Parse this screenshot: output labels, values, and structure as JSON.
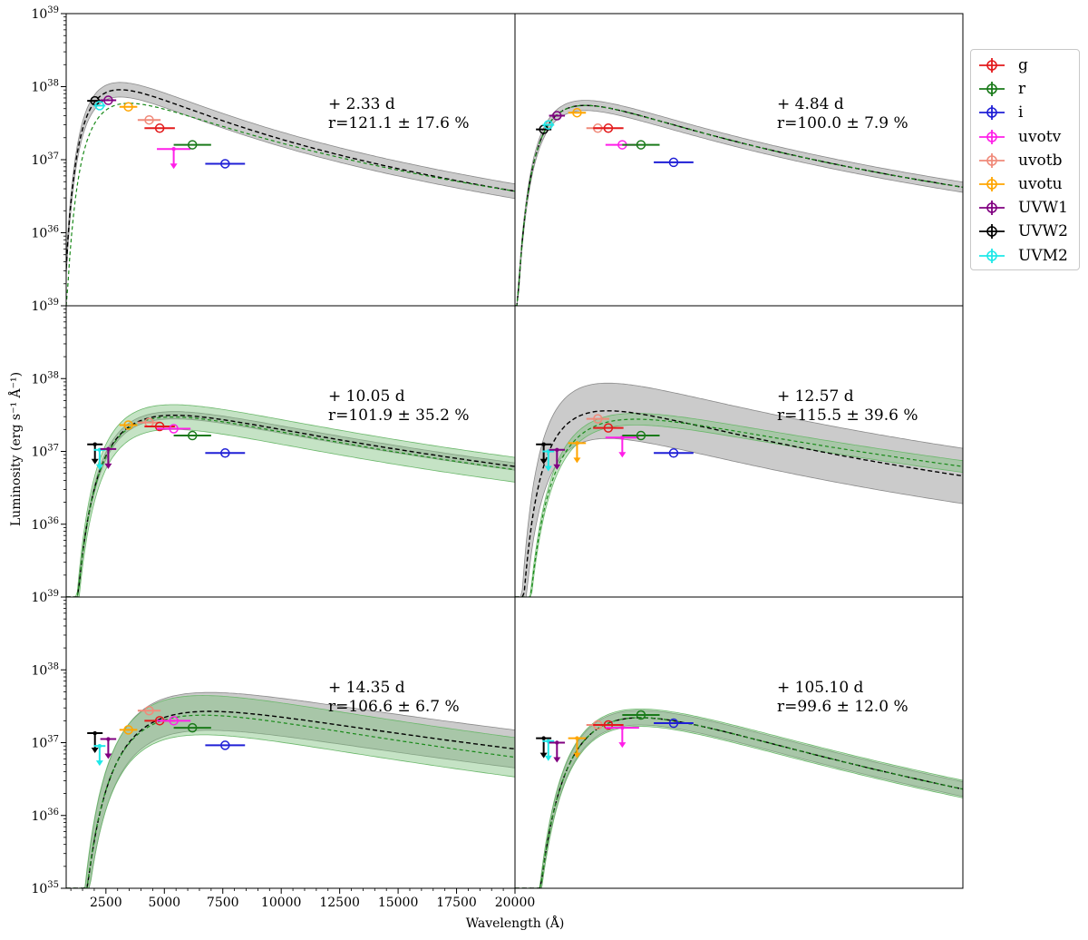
{
  "chart_data": {
    "type": "scatter",
    "title": "",
    "xlabel": "Wavelength (Å)",
    "ylabel": "Luminosity (erg s⁻¹ Å⁻¹)",
    "xlim": [
      800,
      20000
    ],
    "ylim": [
      1e+35,
      1e+39
    ],
    "yscale": "log",
    "xticks": [
      "2500",
      "5000",
      "7500",
      "10000",
      "12500",
      "15000",
      "17500",
      "20000"
    ],
    "ytick_labels": {
      "top": [
        "10^39",
        "10^38",
        "10^37",
        "10^36",
        "10^39"
      ],
      "middle": [
        "10^38",
        "10^37",
        "10^36",
        "10^39"
      ],
      "bottom": [
        "10^38",
        "10^37",
        "10^36",
        "10^35"
      ]
    },
    "legend_location": "upper right, outside axes",
    "legend": [
      {
        "name": "g",
        "color": "#e31a1c",
        "marker": "circle"
      },
      {
        "name": "r",
        "color": "#1a7a1a",
        "marker": "circle"
      },
      {
        "name": "i",
        "color": "#1f1fd6",
        "marker": "circle"
      },
      {
        "name": "uvotv",
        "color": "#ff1fe8",
        "marker": "circle"
      },
      {
        "name": "uvotb",
        "color": "#f08a7a",
        "marker": "circle"
      },
      {
        "name": "uvotu",
        "color": "#ffa500",
        "marker": "circle"
      },
      {
        "name": "UVW1",
        "color": "#800080",
        "marker": "circle"
      },
      {
        "name": "UVW2",
        "color": "#000000",
        "marker": "circle"
      },
      {
        "name": "UVM2",
        "color": "#1ee8e8",
        "marker": "circle"
      }
    ],
    "curve_colors": {
      "model": "#000000",
      "fit": "#1a8a1a",
      "model_band": "#a0a0a0",
      "fit_band": "#7fc27f"
    },
    "panels": [
      {
        "epoch_label": "+ 2.33 d",
        "ratio_label": "r=121.1 ± 17.6 %",
        "model_peak": {
          "wavelength": 2350,
          "luminosity": 7.8e+37,
          "tail_luminosity_20000": 3.7e+36
        },
        "model_band_width_dex": 0.1,
        "fit_peak": {
          "wavelength": 2550,
          "luminosity": 4.9e+37,
          "tail_luminosity_20000": 3.7e+36
        },
        "fit_band_width_dex": 0,
        "points": [
          {
            "band": "UVW2",
            "wavelength": 2030,
            "xerr": 330,
            "luminosity": 6.4e+37,
            "upper_limit": false
          },
          {
            "band": "UVM2",
            "wavelength": 2230,
            "xerr": 250,
            "luminosity": 5.5e+37,
            "upper_limit": false
          },
          {
            "band": "UVW1",
            "wavelength": 2600,
            "xerr": 340,
            "luminosity": 6.5e+37,
            "upper_limit": false
          },
          {
            "band": "uvotu",
            "wavelength": 3460,
            "xerr": 380,
            "luminosity": 5.3e+37,
            "upper_limit": false
          },
          {
            "band": "uvotb",
            "wavelength": 4350,
            "xerr": 490,
            "luminosity": 3.5e+37,
            "upper_limit": false
          },
          {
            "band": "g",
            "wavelength": 4800,
            "xerr": 650,
            "luminosity": 2.7e+37,
            "upper_limit": false
          },
          {
            "band": "uvotv",
            "wavelength": 5400,
            "xerr": 720,
            "luminosity": 1.4e+37,
            "upper_limit": true
          },
          {
            "band": "r",
            "wavelength": 6200,
            "xerr": 800,
            "luminosity": 1.6e+37,
            "upper_limit": false
          },
          {
            "band": "i",
            "wavelength": 7600,
            "xerr": 850,
            "luminosity": 8.8e+36,
            "upper_limit": false
          }
        ]
      },
      {
        "epoch_label": "+ 4.84 d",
        "ratio_label": "r=100.0 ± 7.9 %",
        "model_peak": {
          "wavelength": 2800,
          "luminosity": 4.6e+37,
          "tail_luminosity_20000": 4.2e+36
        },
        "model_band_width_dex": 0.07,
        "fit_peak": {
          "wavelength": 2800,
          "luminosity": 4.6e+37,
          "tail_luminosity_20000": 4.2e+36
        },
        "fit_band_width_dex": 0,
        "points": [
          {
            "band": "UVW2",
            "wavelength": 2030,
            "xerr": 330,
            "luminosity": 2.6e+37,
            "upper_limit": false
          },
          {
            "band": "UVM2",
            "wavelength": 2230,
            "xerr": 250,
            "luminosity": 3e+37,
            "upper_limit": false
          },
          {
            "band": "UVW1",
            "wavelength": 2600,
            "xerr": 340,
            "luminosity": 4e+37,
            "upper_limit": false
          },
          {
            "band": "uvotu",
            "wavelength": 3460,
            "xerr": 380,
            "luminosity": 4.4e+37,
            "upper_limit": false
          },
          {
            "band": "uvotb",
            "wavelength": 4350,
            "xerr": 490,
            "luminosity": 2.7e+37,
            "upper_limit": false
          },
          {
            "band": "g",
            "wavelength": 4800,
            "xerr": 650,
            "luminosity": 2.7e+37,
            "upper_limit": false
          },
          {
            "band": "uvotv",
            "wavelength": 5400,
            "xerr": 720,
            "luminosity": 1.6e+37,
            "upper_limit": false
          },
          {
            "band": "r",
            "wavelength": 6200,
            "xerr": 800,
            "luminosity": 1.6e+37,
            "upper_limit": false
          },
          {
            "band": "i",
            "wavelength": 7600,
            "xerr": 850,
            "luminosity": 9.2e+36,
            "upper_limit": false
          }
        ]
      },
      {
        "epoch_label": "+ 10.05 d",
        "ratio_label": "r=101.9 ± 35.2 %",
        "model_peak": {
          "wavelength": 3700,
          "luminosity": 2.4e+37,
          "tail_luminosity_20000": 6.2e+36
        },
        "model_band_width_dex": 0.05,
        "fit_peak": {
          "wavelength": 3700,
          "luminosity": 2.3e+37,
          "tail_luminosity_20000": 5.6e+36
        },
        "fit_band_width_dex": 0.17,
        "points": [
          {
            "band": "UVW2",
            "wavelength": 2030,
            "xerr": 330,
            "luminosity": 1.25e+37,
            "upper_limit": true
          },
          {
            "band": "UVM2",
            "wavelength": 2230,
            "xerr": 250,
            "luminosity": 1.05e+37,
            "upper_limit": true
          },
          {
            "band": "UVW1",
            "wavelength": 2600,
            "xerr": 340,
            "luminosity": 1.08e+37,
            "upper_limit": true
          },
          {
            "band": "uvotu",
            "wavelength": 3460,
            "xerr": 380,
            "luminosity": 2.3e+37,
            "upper_limit": false
          },
          {
            "band": "uvotb",
            "wavelength": 4350,
            "xerr": 490,
            "luminosity": 2.5e+37,
            "upper_limit": false
          },
          {
            "band": "g",
            "wavelength": 4800,
            "xerr": 650,
            "luminosity": 2.2e+37,
            "upper_limit": false
          },
          {
            "band": "uvotv",
            "wavelength": 5400,
            "xerr": 720,
            "luminosity": 2.05e+37,
            "upper_limit": false
          },
          {
            "band": "r",
            "wavelength": 6200,
            "xerr": 800,
            "luminosity": 1.65e+37,
            "upper_limit": false
          },
          {
            "band": "i",
            "wavelength": 7600,
            "xerr": 850,
            "luminosity": 9.5e+36,
            "upper_limit": false
          }
        ]
      },
      {
        "epoch_label": "+ 12.57 d",
        "ratio_label": "r=115.5 ± 39.6 %",
        "model_peak": {
          "wavelength": 3500,
          "luminosity": 3e+37,
          "tail_luminosity_20000": 4.6e+36
        },
        "model_band_width_dex": 0.38,
        "fit_peak": {
          "wavelength": 4200,
          "luminosity": 2.2e+37,
          "tail_luminosity_20000": 6.2e+36
        },
        "fit_band_width_dex": 0.08,
        "points": [
          {
            "band": "UVW2",
            "wavelength": 2030,
            "xerr": 330,
            "luminosity": 1.25e+37,
            "upper_limit": true
          },
          {
            "band": "UVM2",
            "wavelength": 2230,
            "xerr": 250,
            "luminosity": 1e+37,
            "upper_limit": true
          },
          {
            "band": "UVW1",
            "wavelength": 2600,
            "xerr": 340,
            "luminosity": 1.05e+37,
            "upper_limit": true
          },
          {
            "band": "uvotu",
            "wavelength": 3460,
            "xerr": 380,
            "luminosity": 1.3e+37,
            "upper_limit": true
          },
          {
            "band": "uvotb",
            "wavelength": 4350,
            "xerr": 490,
            "luminosity": 2.8e+37,
            "upper_limit": false
          },
          {
            "band": "g",
            "wavelength": 4800,
            "xerr": 650,
            "luminosity": 2.1e+37,
            "upper_limit": false
          },
          {
            "band": "uvotv",
            "wavelength": 5400,
            "xerr": 720,
            "luminosity": 1.55e+37,
            "upper_limit": true
          },
          {
            "band": "r",
            "wavelength": 6200,
            "xerr": 800,
            "luminosity": 1.65e+37,
            "upper_limit": false
          },
          {
            "band": "i",
            "wavelength": 7600,
            "xerr": 850,
            "luminosity": 9.5e+36,
            "upper_limit": false
          }
        ]
      },
      {
        "epoch_label": "+ 14.35 d",
        "ratio_label": "r=106.6 ± 6.7 %",
        "model_peak": {
          "wavelength": 4800,
          "luminosity": 2.1e+37,
          "tail_luminosity_20000": 8.2e+36
        },
        "model_band_width_dex": 0.26,
        "fit_peak": {
          "wavelength": 4800,
          "luminosity": 1.95e+37,
          "tail_luminosity_20000": 6.3e+36
        },
        "fit_band_width_dex": 0.27,
        "points": [
          {
            "band": "UVW2",
            "wavelength": 2030,
            "xerr": 330,
            "luminosity": 1.35e+37,
            "upper_limit": true
          },
          {
            "band": "UVM2",
            "wavelength": 2230,
            "xerr": 250,
            "luminosity": 9e+36,
            "upper_limit": true
          },
          {
            "band": "UVW1",
            "wavelength": 2600,
            "xerr": 340,
            "luminosity": 1.12e+37,
            "upper_limit": true
          },
          {
            "band": "uvotu",
            "wavelength": 3460,
            "xerr": 380,
            "luminosity": 1.5e+37,
            "upper_limit": false
          },
          {
            "band": "uvotb",
            "wavelength": 4350,
            "xerr": 490,
            "luminosity": 2.75e+37,
            "upper_limit": false
          },
          {
            "band": "g",
            "wavelength": 4800,
            "xerr": 650,
            "luminosity": 2e+37,
            "upper_limit": false
          },
          {
            "band": "uvotv",
            "wavelength": 5400,
            "xerr": 720,
            "luminosity": 2e+37,
            "upper_limit": false
          },
          {
            "band": "r",
            "wavelength": 6200,
            "xerr": 800,
            "luminosity": 1.6e+37,
            "upper_limit": false
          },
          {
            "band": "i",
            "wavelength": 7600,
            "xerr": 850,
            "luminosity": 9.2e+36,
            "upper_limit": false
          }
        ]
      },
      {
        "epoch_label": "+ 105.10 d",
        "ratio_label": "r=99.6 ± 12.0 %",
        "model_peak": {
          "wavelength": 6300,
          "luminosity": 2.2e+37,
          "tail_luminosity_20000": 2.3e+36
        },
        "model_band_width_dex": 0.1,
        "fit_peak": {
          "wavelength": 6300,
          "luminosity": 2.2e+37,
          "tail_luminosity_20000": 2.3e+36
        },
        "fit_band_width_dex": 0.12,
        "points": [
          {
            "band": "UVW2",
            "wavelength": 2030,
            "xerr": 330,
            "luminosity": 1.15e+37,
            "upper_limit": true
          },
          {
            "band": "UVM2",
            "wavelength": 2230,
            "xerr": 250,
            "luminosity": 1.05e+37,
            "upper_limit": true
          },
          {
            "band": "UVW1",
            "wavelength": 2600,
            "xerr": 340,
            "luminosity": 1e+37,
            "upper_limit": true
          },
          {
            "band": "uvotu",
            "wavelength": 3460,
            "xerr": 380,
            "luminosity": 1.15e+37,
            "upper_limit": true
          },
          {
            "band": "uvotb",
            "wavelength": 4350,
            "xerr": 490,
            "luminosity": 1.75e+37,
            "upper_limit": false
          },
          {
            "band": "g",
            "wavelength": 4800,
            "xerr": 650,
            "luminosity": 1.75e+37,
            "upper_limit": false
          },
          {
            "band": "uvotv",
            "wavelength": 5400,
            "xerr": 720,
            "luminosity": 1.6e+37,
            "upper_limit": true
          },
          {
            "band": "r",
            "wavelength": 6200,
            "xerr": 800,
            "luminosity": 2.4e+37,
            "upper_limit": false
          },
          {
            "band": "i",
            "wavelength": 7600,
            "xerr": 850,
            "luminosity": 1.85e+37,
            "upper_limit": false
          }
        ]
      }
    ]
  }
}
